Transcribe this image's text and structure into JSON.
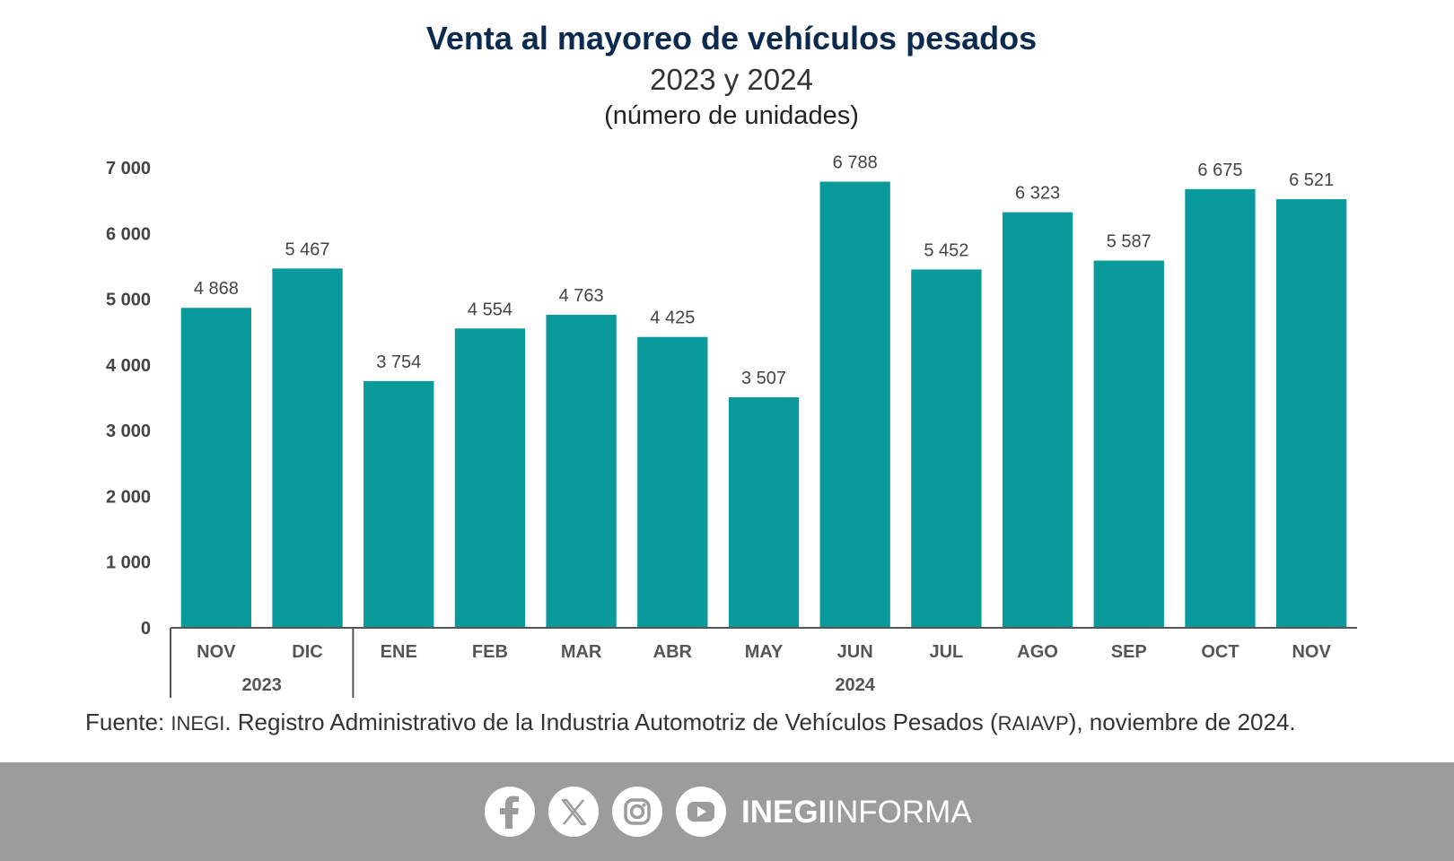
{
  "chart_data": {
    "type": "bar",
    "title": "Venta al mayoreo de vehículos pesados",
    "subtitle": "2023 y 2024",
    "unit_label": "(número de unidades)",
    "categories": [
      "NOV",
      "DIC",
      "ENE",
      "FEB",
      "MAR",
      "ABR",
      "MAY",
      "JUN",
      "JUL",
      "AGO",
      "SEP",
      "OCT",
      "NOV"
    ],
    "values": [
      4868,
      5467,
      3754,
      4554,
      4763,
      4425,
      3507,
      6788,
      5452,
      6323,
      5587,
      6675,
      6521
    ],
    "value_labels": [
      "4 868",
      "5 467",
      "3 754",
      "4 554",
      "4 763",
      "4 425",
      "3 507",
      "6 788",
      "5 452",
      "6 323",
      "5 587",
      "6 675",
      "6 521"
    ],
    "year_groups": [
      {
        "label": "2023",
        "categories": 2
      },
      {
        "label": "2024",
        "categories": 11
      }
    ],
    "ylim": [
      0,
      7000
    ],
    "yticks": [
      0,
      1000,
      2000,
      3000,
      4000,
      5000,
      6000,
      7000
    ],
    "ytick_labels": [
      "0",
      "1 000",
      "2 000",
      "3 000",
      "4 000",
      "5 000",
      "6 000",
      "7 000"
    ],
    "xlabel": "",
    "ylabel": "",
    "grid": false,
    "legend": "none",
    "bar_color": "#0a9a9b"
  },
  "source": {
    "prefix": "Fuente: ",
    "org": "INEGI",
    "middle": ". Registro Administrativo de la Industria Automotriz de Vehículos Pesados (",
    "acronym": "RAIAVP",
    "suffix": "), noviembre de 2024."
  },
  "footer": {
    "icons": [
      "facebook-icon",
      "x-icon",
      "instagram-icon",
      "youtube-icon"
    ],
    "brand_bold": "INEGI",
    "brand_light": "INFORMA",
    "background_color": "#9c9c9c"
  }
}
